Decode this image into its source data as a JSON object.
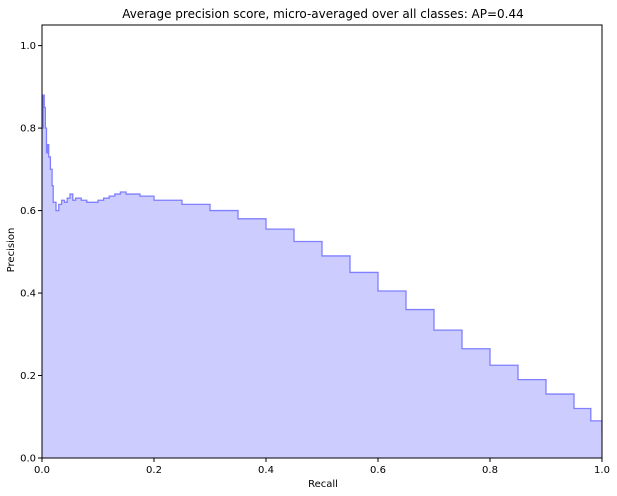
{
  "chart_data": {
    "type": "area",
    "title": "Average precision score, micro-averaged over all classes: AP=0.44",
    "xlabel": "Recall",
    "ylabel": "Precision",
    "xlim": [
      0.0,
      1.0
    ],
    "ylim": [
      0.0,
      1.05
    ],
    "x_ticks": [
      "0.0",
      "0.2",
      "0.4",
      "0.6",
      "0.8",
      "1.0"
    ],
    "y_ticks": [
      "0.0",
      "0.2",
      "0.4",
      "0.6",
      "0.8",
      "1.0"
    ],
    "grid": false,
    "colors": {
      "fill": "#ccccff",
      "line": "#7f7fff"
    },
    "series": [
      {
        "recall": [
          0.0,
          0.002,
          0.004,
          0.006,
          0.008,
          0.01,
          0.012,
          0.015,
          0.018,
          0.02,
          0.025,
          0.03,
          0.035,
          0.04,
          0.045,
          0.05,
          0.055,
          0.06,
          0.07,
          0.08,
          0.09,
          0.1,
          0.11,
          0.12,
          0.13,
          0.14,
          0.15,
          0.175,
          0.2,
          0.25,
          0.3,
          0.35,
          0.4,
          0.45,
          0.5,
          0.55,
          0.6,
          0.65,
          0.7,
          0.75,
          0.8,
          0.85,
          0.9,
          0.95,
          0.98,
          1.0
        ],
        "precision": [
          0.8,
          0.88,
          0.85,
          0.8,
          0.74,
          0.76,
          0.73,
          0.7,
          0.66,
          0.62,
          0.6,
          0.615,
          0.625,
          0.62,
          0.63,
          0.64,
          0.625,
          0.63,
          0.625,
          0.62,
          0.62,
          0.625,
          0.63,
          0.635,
          0.64,
          0.645,
          0.64,
          0.635,
          0.625,
          0.615,
          0.6,
          0.58,
          0.555,
          0.525,
          0.49,
          0.45,
          0.405,
          0.36,
          0.31,
          0.265,
          0.225,
          0.19,
          0.155,
          0.12,
          0.09,
          0.06
        ]
      }
    ]
  }
}
